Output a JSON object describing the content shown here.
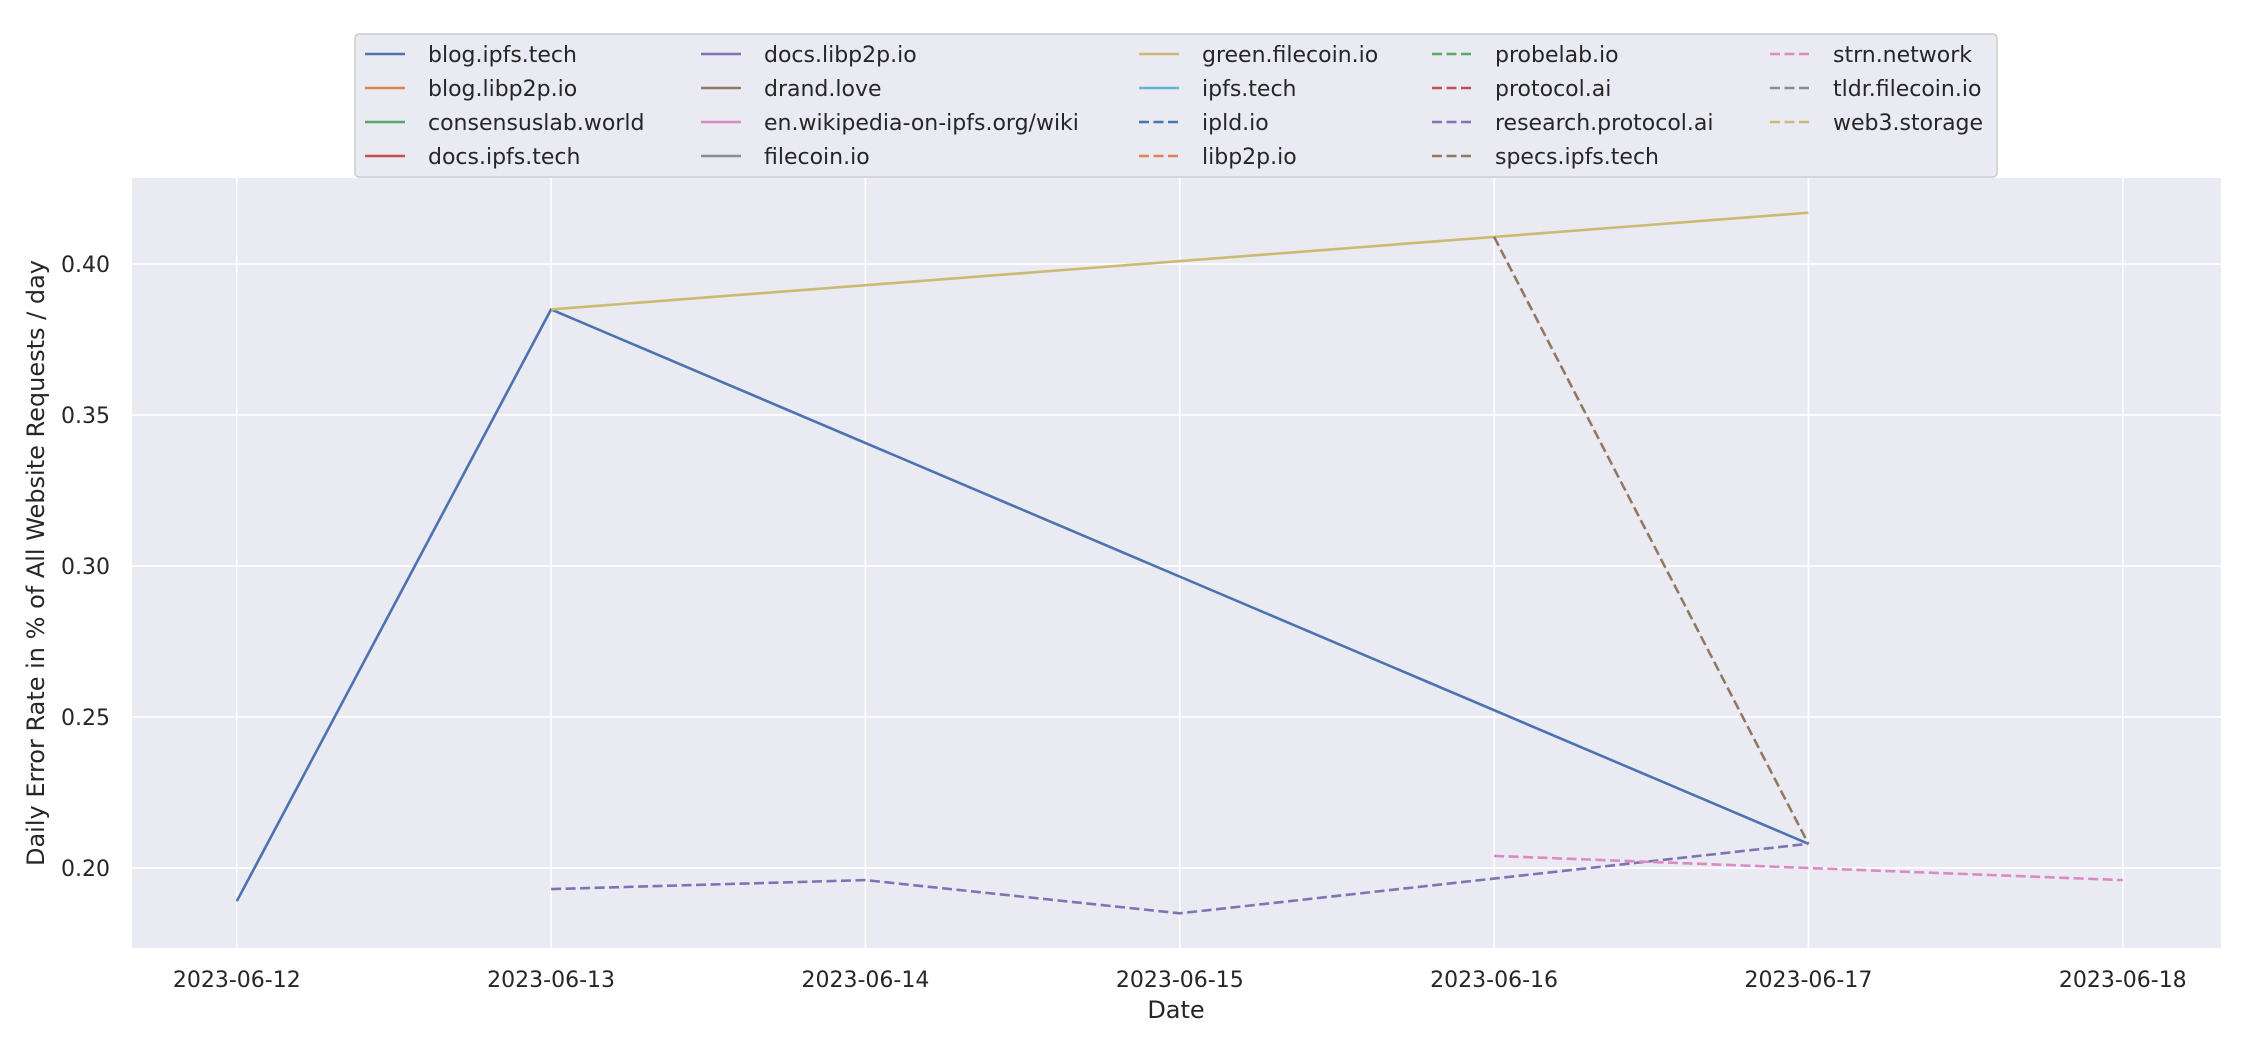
{
  "chart_data": {
    "type": "line",
    "title": "",
    "xlabel": "Date",
    "ylabel": "Daily Error Rate in % of All Website Requests / day",
    "x_ticks": [
      "2023-06-12",
      "2023-06-13",
      "2023-06-14",
      "2023-06-15",
      "2023-06-16",
      "2023-06-17",
      "2023-06-18"
    ],
    "y_ticks": [
      "0.20",
      "0.25",
      "0.30",
      "0.35",
      "0.40"
    ],
    "xlim": [
      "2023-06-11T16:00",
      "2023-06-18T07:30"
    ],
    "ylim": [
      0.1735,
      0.4285
    ],
    "grid": true,
    "legend_position": "top-center",
    "legend_columns": 5,
    "series": [
      {
        "name": "blog.ipfs.tech",
        "color": "#4c72b0",
        "dash": "solid",
        "points": [
          [
            "2023-06-12",
            0.189
          ],
          [
            "2023-06-13",
            0.385
          ],
          [
            "2023-06-17",
            0.208
          ]
        ]
      },
      {
        "name": "blog.libp2p.io",
        "color": "#dd8452",
        "dash": "solid",
        "points": []
      },
      {
        "name": "consensuslab.world",
        "color": "#55a868",
        "dash": "solid",
        "points": []
      },
      {
        "name": "docs.ipfs.tech",
        "color": "#c44e52",
        "dash": "solid",
        "points": []
      },
      {
        "name": "docs.libp2p.io",
        "color": "#8172b3",
        "dash": "solid",
        "points": []
      },
      {
        "name": "drand.love",
        "color": "#937860",
        "dash": "solid",
        "points": []
      },
      {
        "name": "en.wikipedia-on-ipfs.org/wiki",
        "color": "#da8bc3",
        "dash": "solid",
        "points": []
      },
      {
        "name": "filecoin.io",
        "color": "#8c8c8c",
        "dash": "solid",
        "points": []
      },
      {
        "name": "green.filecoin.io",
        "color": "#ccb974",
        "dash": "solid",
        "points": [
          [
            "2023-06-13",
            0.385
          ],
          [
            "2023-06-16",
            0.409
          ],
          [
            "2023-06-17",
            0.417
          ]
        ]
      },
      {
        "name": "ipfs.tech",
        "color": "#64b5cd",
        "dash": "solid",
        "points": []
      },
      {
        "name": "ipld.io",
        "color": "#4c72b0",
        "dash": "dashed",
        "points": []
      },
      {
        "name": "libp2p.io",
        "color": "#dd8452",
        "dash": "dashed",
        "points": []
      },
      {
        "name": "probelab.io",
        "color": "#55a868",
        "dash": "dashed",
        "points": []
      },
      {
        "name": "protocol.ai",
        "color": "#c44e52",
        "dash": "dashed",
        "points": []
      },
      {
        "name": "research.protocol.ai",
        "color": "#8172b3",
        "dash": "dashed",
        "points": [
          [
            "2023-06-13",
            0.193
          ],
          [
            "2023-06-14",
            0.196
          ],
          [
            "2023-06-15",
            0.185
          ],
          [
            "2023-06-17",
            0.208
          ]
        ]
      },
      {
        "name": "specs.ipfs.tech",
        "color": "#937860",
        "dash": "dashed",
        "points": [
          [
            "2023-06-16",
            0.409
          ],
          [
            "2023-06-17",
            0.208
          ]
        ]
      },
      {
        "name": "strn.network",
        "color": "#da8bc3",
        "dash": "dashed",
        "points": [
          [
            "2023-06-16",
            0.204
          ],
          [
            "2023-06-17",
            0.2
          ],
          [
            "2023-06-18",
            0.196
          ]
        ]
      },
      {
        "name": "tldr.filecoin.io",
        "color": "#8c8c8c",
        "dash": "dashed",
        "points": []
      },
      {
        "name": "web3.storage",
        "color": "#ccb974",
        "dash": "dashed",
        "points": []
      }
    ]
  }
}
